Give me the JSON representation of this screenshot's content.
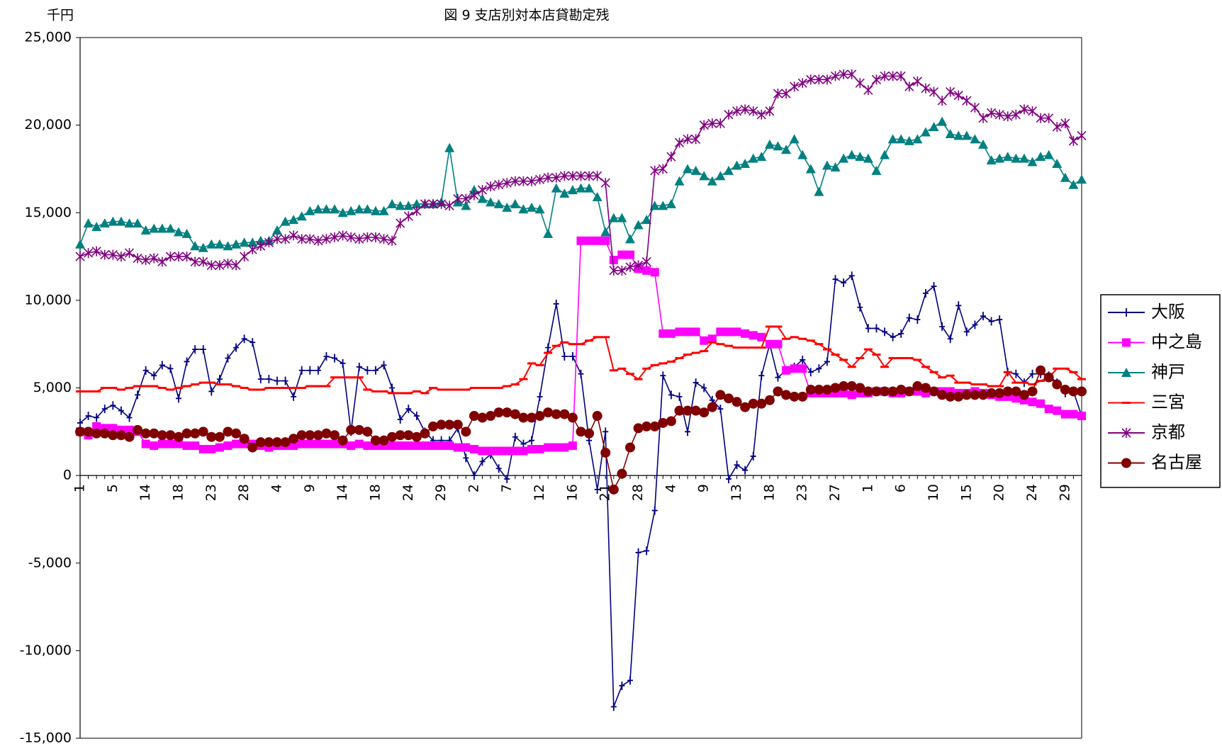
{
  "chart_data": {
    "type": "line",
    "title": "図 9  支店別対本店貸勘定残",
    "y_axis_label": "千円",
    "categories": [
      "1",
      null,
      null,
      null,
      "5",
      null,
      null,
      null,
      "14",
      null,
      null,
      null,
      "18",
      null,
      null,
      null,
      "23",
      null,
      null,
      null,
      "28",
      null,
      null,
      null,
      "4",
      null,
      null,
      null,
      "9",
      null,
      null,
      null,
      "14",
      null,
      null,
      null,
      "18",
      null,
      null,
      null,
      "24",
      null,
      null,
      null,
      "29",
      null,
      null,
      null,
      "2",
      null,
      null,
      null,
      "7",
      null,
      null,
      null,
      "12",
      null,
      null,
      null,
      "16",
      null,
      null,
      null,
      "21",
      null,
      null,
      null,
      "28",
      null,
      null,
      null,
      "4",
      null,
      null,
      null,
      "9",
      null,
      null,
      null,
      "13",
      null,
      null,
      null,
      "18",
      null,
      null,
      null,
      "23",
      null,
      null,
      null,
      "27",
      null,
      null,
      null,
      "1",
      null,
      null,
      null,
      "6",
      null,
      null,
      null,
      "10",
      null,
      null,
      null,
      "15",
      null,
      null,
      null,
      "20",
      null,
      null,
      null,
      "24",
      null,
      null,
      null,
      "29",
      null,
      null
    ],
    "ylim": [
      -15000,
      25000
    ],
    "yticks": [
      {
        "value": -15000,
        "label": "-15,000"
      },
      {
        "value": -10000,
        "label": "-10,000"
      },
      {
        "value": -5000,
        "label": "-5,000"
      },
      0,
      {
        "value": 5000,
        "label": "5,000"
      },
      {
        "value": 10000,
        "label": "10,000"
      },
      {
        "value": 15000,
        "label": "15,000"
      },
      {
        "value": 20000,
        "label": "20,000"
      },
      {
        "value": 25000,
        "label": "25,000"
      }
    ],
    "negative_tick_color": "#ff0000",
    "grid": false,
    "legend": "right",
    "series": [
      {
        "name": "大阪",
        "color": "#000080",
        "marker": "plus",
        "values": [
          3000,
          3400,
          3300,
          3800,
          4000,
          3700,
          3300,
          4600,
          6000,
          5700,
          6300,
          6100,
          4400,
          6500,
          7200,
          7200,
          4800,
          5500,
          6700,
          7300,
          7800,
          7600,
          5500,
          5500,
          5400,
          5400,
          4500,
          6000,
          6000,
          6000,
          6800,
          6700,
          6400,
          2500,
          6200,
          6000,
          6000,
          6300,
          5000,
          3200,
          3800,
          3400,
          2500,
          2000,
          2000,
          2000,
          2700,
          1000,
          0,
          800,
          1200,
          400,
          -200,
          2200,
          1800,
          2000,
          4500,
          7300,
          9800,
          6800,
          6800,
          5800,
          2000,
          -800,
          2500,
          -13200,
          -12000,
          -11700,
          -4400,
          -4300,
          -2000,
          5700,
          4600,
          4500,
          2500,
          5300,
          5000,
          4300,
          3800,
          -200,
          600,
          300,
          1100,
          5700,
          7500,
          5600,
          6000,
          6200,
          6600,
          5900,
          6100,
          6500,
          11200,
          11000,
          11400,
          9600,
          8400,
          8400,
          8200,
          7900,
          8100,
          9000,
          8900,
          10400,
          10800,
          8500,
          7800,
          9700,
          8200,
          8600,
          9100,
          8800,
          8900,
          5900,
          5800,
          5300,
          5800,
          5800,
          5700,
          5300,
          4700,
          4800,
          3400
        ]
      },
      {
        "name": "中之島",
        "color": "#ff00ff",
        "marker": "square",
        "values": [
          2500,
          2300,
          2800,
          2700,
          2700,
          2600,
          2600,
          2500,
          1800,
          1700,
          1800,
          1800,
          1800,
          1700,
          1700,
          1500,
          1500,
          1600,
          1700,
          1800,
          1800,
          1800,
          1700,
          1600,
          1700,
          1700,
          1700,
          1800,
          1800,
          1800,
          1800,
          1800,
          1800,
          1700,
          1800,
          1700,
          1700,
          1700,
          1700,
          1700,
          1700,
          1700,
          1700,
          1700,
          1700,
          1700,
          1600,
          1600,
          1500,
          1400,
          1400,
          1400,
          1400,
          1400,
          1400,
          1500,
          1500,
          1600,
          1600,
          1600,
          1700,
          13400,
          13400,
          13400,
          13400,
          12300,
          12600,
          12600,
          11800,
          11700,
          11600,
          8100,
          8100,
          8200,
          8200,
          8200,
          7700,
          7800,
          8200,
          8200,
          8200,
          8100,
          8000,
          7900,
          7500,
          7500,
          6000,
          6100,
          6100,
          4700,
          4700,
          4700,
          4700,
          4700,
          4600,
          4700,
          4700,
          4800,
          4800,
          4700,
          4700,
          4800,
          4800,
          4700,
          4800,
          4800,
          4800,
          4700,
          4700,
          4800,
          4700,
          4600,
          4500,
          4500,
          4400,
          4300,
          4200,
          4100,
          3800,
          3700,
          3500,
          3500,
          3400
        ]
      },
      {
        "name": "神戸",
        "color": "#008080",
        "marker": "triangle",
        "values": [
          13200,
          14400,
          14200,
          14400,
          14500,
          14500,
          14400,
          14400,
          14000,
          14100,
          14100,
          14100,
          13900,
          13800,
          13100,
          13000,
          13200,
          13200,
          13100,
          13200,
          13300,
          13300,
          13400,
          13400,
          14000,
          14500,
          14600,
          14800,
          15100,
          15200,
          15200,
          15200,
          15000,
          15100,
          15200,
          15200,
          15100,
          15100,
          15500,
          15400,
          15400,
          15500,
          15500,
          15500,
          15600,
          18700,
          15600,
          15400,
          16300,
          15800,
          15600,
          15500,
          15300,
          15500,
          15200,
          15300,
          15200,
          13800,
          16400,
          16100,
          16300,
          16400,
          16400,
          15900,
          13900,
          14700,
          14700,
          13500,
          14300,
          14600,
          15400,
          15400,
          15500,
          16800,
          17500,
          17400,
          17100,
          16800,
          17100,
          17400,
          17700,
          17800,
          18100,
          18200,
          18900,
          18800,
          18600,
          19200,
          18300,
          17500,
          16200,
          17700,
          17600,
          18100,
          18300,
          18200,
          18100,
          17400,
          18300,
          19200,
          19200,
          19100,
          19200,
          19600,
          19900,
          20200,
          19500,
          19400,
          19400,
          19200,
          18900,
          18000,
          18100,
          18200,
          18100,
          18100,
          17900,
          18200,
          18300,
          17800,
          17000,
          16600,
          16900
        ]
      },
      {
        "name": "三宮",
        "color": "#ff0000",
        "marker": "dash",
        "values": [
          4800,
          4800,
          4800,
          5000,
          5000,
          4900,
          5000,
          5100,
          5100,
          5100,
          5000,
          4900,
          5000,
          5100,
          5200,
          5300,
          5300,
          5200,
          5200,
          5100,
          5000,
          4900,
          4900,
          5000,
          5000,
          5000,
          5000,
          5000,
          5100,
          5100,
          5100,
          5600,
          5600,
          5600,
          5600,
          4900,
          4800,
          4800,
          4700,
          4700,
          4700,
          4800,
          4700,
          5000,
          4900,
          4900,
          4900,
          4900,
          5000,
          5000,
          5000,
          5000,
          5100,
          5200,
          5500,
          6400,
          6300,
          7000,
          7400,
          7600,
          7500,
          7500,
          7700,
          7900,
          7900,
          6000,
          6100,
          5800,
          5500,
          6100,
          6300,
          6400,
          6500,
          6700,
          6900,
          7000,
          7100,
          7600,
          7500,
          7400,
          7300,
          7300,
          7300,
          7300,
          8500,
          8500,
          7800,
          7900,
          7800,
          7700,
          7500,
          7200,
          6900,
          6600,
          6200,
          6700,
          7200,
          6900,
          6200,
          6700,
          6700,
          6700,
          6600,
          6200,
          5900,
          5600,
          5700,
          5300,
          5300,
          5200,
          5200,
          5100,
          5100,
          5900,
          5300,
          5300,
          5200,
          5400,
          5600,
          6100,
          6100,
          5900,
          5500
        ]
      },
      {
        "name": "京都",
        "color": "#800080",
        "marker": "asterisk",
        "values": [
          12500,
          12700,
          12800,
          12600,
          12600,
          12500,
          12700,
          12400,
          12300,
          12400,
          12200,
          12500,
          12500,
          12500,
          12200,
          12200,
          12000,
          12000,
          12100,
          12000,
          12500,
          12900,
          13100,
          13300,
          13500,
          13500,
          13700,
          13500,
          13500,
          13400,
          13500,
          13600,
          13700,
          13600,
          13500,
          13600,
          13600,
          13500,
          13400,
          14400,
          14800,
          15100,
          15500,
          15500,
          15500,
          15400,
          15800,
          15800,
          16000,
          16300,
          16500,
          16600,
          16700,
          16800,
          16800,
          16800,
          16900,
          17000,
          17000,
          17100,
          17100,
          17100,
          17100,
          17100,
          16700,
          11700,
          11700,
          11900,
          12000,
          12200,
          17400,
          17500,
          18200,
          19000,
          19200,
          19200,
          20000,
          20100,
          20100,
          20600,
          20800,
          20900,
          20800,
          20600,
          20800,
          21800,
          21800,
          22200,
          22400,
          22600,
          22600,
          22600,
          22800,
          22900,
          22900,
          22400,
          22000,
          22600,
          22800,
          22800,
          22800,
          22200,
          22500,
          22100,
          21900,
          21400,
          21900,
          21700,
          21400,
          21000,
          20400,
          20700,
          20600,
          20500,
          20600,
          20900,
          20800,
          20400,
          20400,
          19900,
          20100,
          19100,
          19400
        ]
      },
      {
        "name": "名古屋",
        "color": "#800000",
        "marker": "circle",
        "values": [
          2500,
          2500,
          2400,
          2400,
          2300,
          2300,
          2200,
          2600,
          2400,
          2400,
          2300,
          2300,
          2200,
          2400,
          2400,
          2500,
          2200,
          2200,
          2500,
          2400,
          2100,
          1600,
          1900,
          1900,
          1900,
          1900,
          2100,
          2300,
          2300,
          2300,
          2400,
          2300,
          2000,
          2600,
          2600,
          2500,
          2000,
          2000,
          2200,
          2300,
          2300,
          2200,
          2400,
          2800,
          2900,
          2900,
          2900,
          2500,
          3400,
          3300,
          3400,
          3600,
          3600,
          3500,
          3300,
          3300,
          3400,
          3600,
          3500,
          3500,
          3300,
          2500,
          2400,
          3400,
          1300,
          -800,
          100,
          1600,
          2700,
          2800,
          2800,
          3000,
          3100,
          3700,
          3700,
          3700,
          3600,
          3900,
          4600,
          4400,
          4200,
          3900,
          4100,
          4100,
          4300,
          4800,
          4600,
          4500,
          4500,
          4900,
          4900,
          4900,
          5000,
          5100,
          5100,
          5000,
          4800,
          4800,
          4800,
          4800,
          4900,
          4800,
          5100,
          5000,
          4800,
          4600,
          4500,
          4500,
          4600,
          4600,
          4600,
          4700,
          4700,
          4800,
          4800,
          4600,
          4800,
          6000,
          5600,
          5200,
          4900,
          4800,
          4800
        ]
      }
    ]
  }
}
